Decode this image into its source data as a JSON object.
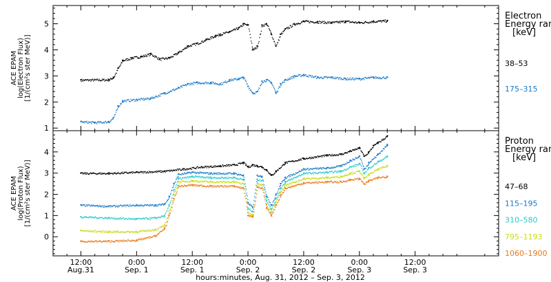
{
  "chart_data": [
    {
      "type": "scatter",
      "panel": "electron",
      "ylabel_lines": [
        "ACE EPAM",
        "log(Electron Flux)",
        "[1/(cm²s ster MeV)]"
      ],
      "ylim": [
        0.9,
        5.7
      ],
      "yticks": [
        1,
        2,
        3,
        4,
        5
      ],
      "legend_title_lines": [
        "Electron",
        "Energy ranges",
        "[keV]"
      ],
      "x_unit": "hours since 2012-08-31 00:00 UT",
      "series": [
        {
          "name": "38–53",
          "color": "#000000",
          "points": [
            [
              12,
              2.85
            ],
            [
              18,
              2.86
            ],
            [
              19,
              2.95
            ],
            [
              20,
              3.3
            ],
            [
              21,
              3.6
            ],
            [
              23,
              3.7
            ],
            [
              25,
              3.75
            ],
            [
              27,
              3.85
            ],
            [
              29,
              3.65
            ],
            [
              31,
              3.7
            ],
            [
              33,
              3.9
            ],
            [
              35,
              4.15
            ],
            [
              37,
              4.25
            ],
            [
              39,
              4.4
            ],
            [
              41,
              4.55
            ],
            [
              42,
              4.6
            ],
            [
              44,
              4.7
            ],
            [
              46,
              4.85
            ],
            [
              47,
              5.0
            ],
            [
              48,
              4.95
            ],
            [
              49,
              4.0
            ],
            [
              50,
              4.15
            ],
            [
              51,
              4.95
            ],
            [
              52,
              5.0
            ],
            [
              53,
              4.6
            ],
            [
              54,
              4.15
            ],
            [
              55,
              4.6
            ],
            [
              56,
              4.8
            ],
            [
              58,
              5.0
            ],
            [
              60,
              5.1
            ],
            [
              63,
              5.08
            ],
            [
              66,
              5.05
            ],
            [
              69,
              5.1
            ],
            [
              72,
              5.05
            ],
            [
              75,
              5.1
            ],
            [
              78,
              5.12
            ]
          ]
        },
        {
          "name": "175–315",
          "color": "#1878c8",
          "points": [
            [
              12,
              1.25
            ],
            [
              15,
              1.22
            ],
            [
              18,
              1.25
            ],
            [
              19,
              1.4
            ],
            [
              20,
              1.85
            ],
            [
              21,
              2.05
            ],
            [
              24,
              2.1
            ],
            [
              27,
              2.15
            ],
            [
              30,
              2.35
            ],
            [
              33,
              2.55
            ],
            [
              35,
              2.7
            ],
            [
              37,
              2.75
            ],
            [
              40,
              2.75
            ],
            [
              42,
              2.7
            ],
            [
              44,
              2.85
            ],
            [
              46,
              2.9
            ],
            [
              47,
              2.95
            ],
            [
              48,
              2.6
            ],
            [
              49,
              2.35
            ],
            [
              50,
              2.4
            ],
            [
              51,
              2.8
            ],
            [
              52,
              2.85
            ],
            [
              53,
              2.75
            ],
            [
              54,
              2.35
            ],
            [
              55,
              2.7
            ],
            [
              56,
              2.85
            ],
            [
              58,
              3.0
            ],
            [
              60,
              3.05
            ],
            [
              63,
              2.95
            ],
            [
              66,
              2.95
            ],
            [
              69,
              2.9
            ],
            [
              72,
              2.9
            ],
            [
              75,
              2.95
            ],
            [
              78,
              2.95
            ]
          ]
        }
      ]
    },
    {
      "type": "scatter",
      "panel": "proton",
      "ylabel_lines": [
        "ACE EPAM",
        "log(Proton Flux)",
        "[1/(cm²s ster MeV)]"
      ],
      "ylim": [
        -0.9,
        5.0
      ],
      "yticks": [
        0,
        1,
        2,
        3,
        4
      ],
      "legend_title_lines": [
        "Proton",
        "Energy ranges",
        "[keV]"
      ],
      "x_unit": "hours since 2012-08-31 00:00 UT",
      "series": [
        {
          "name": "47–68",
          "color": "#000000",
          "points": [
            [
              12,
              3.0
            ],
            [
              18,
              3.0
            ],
            [
              24,
              3.05
            ],
            [
              30,
              3.1
            ],
            [
              34,
              3.2
            ],
            [
              38,
              3.3
            ],
            [
              42,
              3.35
            ],
            [
              45,
              3.4
            ],
            [
              47,
              3.5
            ],
            [
              48,
              3.3
            ],
            [
              49,
              3.4
            ],
            [
              50,
              3.35
            ],
            [
              51,
              3.3
            ],
            [
              52,
              3.15
            ],
            [
              53,
              2.9
            ],
            [
              54,
              3.1
            ],
            [
              56,
              3.5
            ],
            [
              60,
              3.7
            ],
            [
              65,
              3.85
            ],
            [
              68,
              3.9
            ],
            [
              70,
              4.05
            ],
            [
              72,
              4.2
            ],
            [
              73,
              3.8
            ],
            [
              74,
              4.0
            ],
            [
              75,
              4.3
            ],
            [
              76,
              4.45
            ],
            [
              78,
              4.75
            ]
          ]
        },
        {
          "name": "115–195",
          "color": "#1878c8",
          "points": [
            [
              12,
              1.5
            ],
            [
              18,
              1.45
            ],
            [
              24,
              1.5
            ],
            [
              28,
              1.5
            ],
            [
              30,
              1.55
            ],
            [
              31,
              1.9
            ],
            [
              32,
              2.5
            ],
            [
              33,
              2.95
            ],
            [
              36,
              3.05
            ],
            [
              40,
              3.0
            ],
            [
              45,
              3.0
            ],
            [
              47,
              2.9
            ],
            [
              48,
              1.6
            ],
            [
              49,
              1.4
            ],
            [
              50,
              2.9
            ],
            [
              51,
              2.85
            ],
            [
              52,
              1.9
            ],
            [
              53,
              1.5
            ],
            [
              54,
              2.0
            ],
            [
              55,
              2.5
            ],
            [
              56,
              2.8
            ],
            [
              60,
              3.2
            ],
            [
              65,
              3.25
            ],
            [
              68,
              3.35
            ],
            [
              70,
              3.6
            ],
            [
              72,
              3.8
            ],
            [
              73,
              3.2
            ],
            [
              74,
              3.5
            ],
            [
              76,
              3.9
            ],
            [
              78,
              4.35
            ]
          ]
        },
        {
          "name": "310–580",
          "color": "#28c8c8",
          "points": [
            [
              12,
              0.95
            ],
            [
              18,
              0.9
            ],
            [
              24,
              0.85
            ],
            [
              28,
              0.9
            ],
            [
              30,
              1.0
            ],
            [
              31,
              1.5
            ],
            [
              32,
              2.2
            ],
            [
              33,
              2.75
            ],
            [
              36,
              2.85
            ],
            [
              40,
              2.8
            ],
            [
              45,
              2.8
            ],
            [
              47,
              2.7
            ],
            [
              48,
              1.35
            ],
            [
              49,
              1.2
            ],
            [
              50,
              2.7
            ],
            [
              51,
              2.65
            ],
            [
              52,
              1.7
            ],
            [
              53,
              1.3
            ],
            [
              54,
              1.8
            ],
            [
              55,
              2.3
            ],
            [
              56,
              2.6
            ],
            [
              60,
              3.0
            ],
            [
              65,
              3.05
            ],
            [
              68,
              3.1
            ],
            [
              70,
              3.3
            ],
            [
              72,
              3.45
            ],
            [
              73,
              3.0
            ],
            [
              74,
              3.25
            ],
            [
              76,
              3.55
            ],
            [
              78,
              3.8
            ]
          ]
        },
        {
          "name": "795–1193",
          "color": "#c8dc14",
          "points": [
            [
              12,
              0.3
            ],
            [
              18,
              0.25
            ],
            [
              24,
              0.25
            ],
            [
              28,
              0.35
            ],
            [
              30,
              0.55
            ],
            [
              31,
              1.2
            ],
            [
              32,
              2.0
            ],
            [
              33,
              2.6
            ],
            [
              36,
              2.65
            ],
            [
              40,
              2.6
            ],
            [
              45,
              2.6
            ],
            [
              47,
              2.5
            ],
            [
              48,
              1.15
            ],
            [
              49,
              1.05
            ],
            [
              50,
              2.5
            ],
            [
              51,
              2.45
            ],
            [
              52,
              1.5
            ],
            [
              53,
              1.15
            ],
            [
              54,
              1.65
            ],
            [
              55,
              2.1
            ],
            [
              56,
              2.45
            ],
            [
              60,
              2.75
            ],
            [
              65,
              2.8
            ],
            [
              68,
              2.85
            ],
            [
              70,
              3.0
            ],
            [
              72,
              3.1
            ],
            [
              73,
              2.75
            ],
            [
              74,
              2.95
            ],
            [
              76,
              3.2
            ],
            [
              78,
              3.35
            ]
          ]
        },
        {
          "name": "1060–1900",
          "color": "#e87814",
          "points": [
            [
              12,
              -0.2
            ],
            [
              18,
              -0.2
            ],
            [
              24,
              -0.15
            ],
            [
              28,
              0.05
            ],
            [
              30,
              0.4
            ],
            [
              31,
              1.0
            ],
            [
              32,
              1.8
            ],
            [
              33,
              2.4
            ],
            [
              36,
              2.45
            ],
            [
              40,
              2.4
            ],
            [
              45,
              2.4
            ],
            [
              47,
              2.3
            ],
            [
              48,
              1.0
            ],
            [
              49,
              0.95
            ],
            [
              50,
              2.35
            ],
            [
              51,
              2.3
            ],
            [
              52,
              1.35
            ],
            [
              53,
              1.0
            ],
            [
              54,
              1.5
            ],
            [
              55,
              1.95
            ],
            [
              56,
              2.3
            ],
            [
              60,
              2.55
            ],
            [
              65,
              2.6
            ],
            [
              68,
              2.6
            ],
            [
              70,
              2.7
            ],
            [
              72,
              2.75
            ],
            [
              73,
              2.5
            ],
            [
              74,
              2.65
            ],
            [
              76,
              2.8
            ],
            [
              78,
              2.85
            ]
          ]
        }
      ]
    }
  ],
  "x_axis": {
    "range_hours": [
      6,
      102
    ],
    "ticks": [
      {
        "hours": 12,
        "top": "12:00",
        "bottom": "Aug.31"
      },
      {
        "hours": 24,
        "top": "0:00",
        "bottom": "Sep. 1"
      },
      {
        "hours": 36,
        "top": "12:00",
        "bottom": "Sep. 1"
      },
      {
        "hours": 48,
        "top": "0:00",
        "bottom": "Sep. 2"
      },
      {
        "hours": 60,
        "top": "12:00",
        "bottom": "Sep. 2"
      },
      {
        "hours": 72,
        "top": "0:00",
        "bottom": "Sep. 3"
      },
      {
        "hours": 84,
        "top": "12:00",
        "bottom": "Sep. 3"
      }
    ],
    "label": "hours:minutes, Aug. 31, 2012 – Sep.  3, 2012"
  }
}
